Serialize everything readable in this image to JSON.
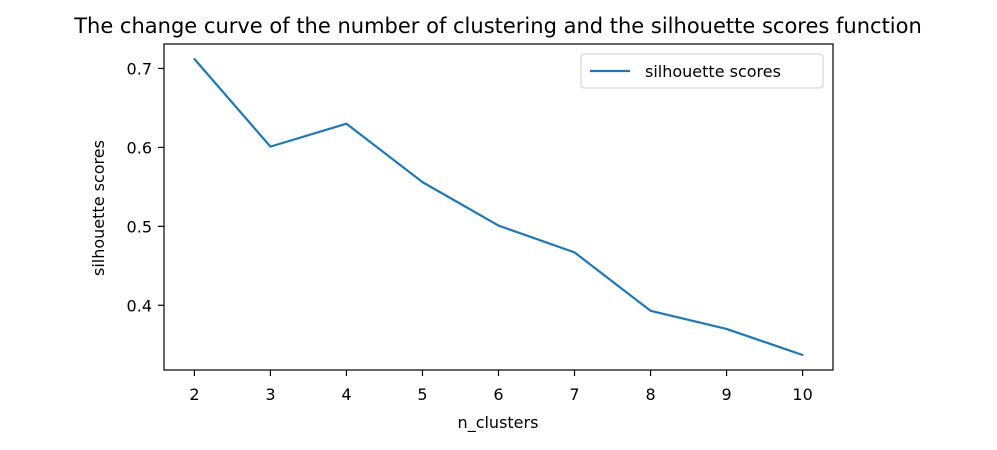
{
  "chart_data": {
    "type": "line",
    "title": "The change curve of the number of clustering and the silhouette scores function",
    "xlabel": "n_clusters",
    "ylabel": "silhouette scores",
    "x": [
      2,
      3,
      4,
      5,
      6,
      7,
      8,
      9,
      10
    ],
    "xticks": [
      "2",
      "3",
      "4",
      "5",
      "6",
      "7",
      "8",
      "9",
      "10"
    ],
    "yticks": [
      "0.4",
      "0.5",
      "0.6",
      "0.7"
    ],
    "xlim": [
      1.6,
      10.4
    ],
    "ylim": [
      0.318,
      0.731
    ],
    "series": [
      {
        "name": "silhouette scores",
        "color": "#1f77b4",
        "values": [
          0.712,
          0.601,
          0.63,
          0.556,
          0.501,
          0.467,
          0.393,
          0.37,
          0.337
        ]
      }
    ],
    "legend_position": "top-right",
    "grid": false
  }
}
